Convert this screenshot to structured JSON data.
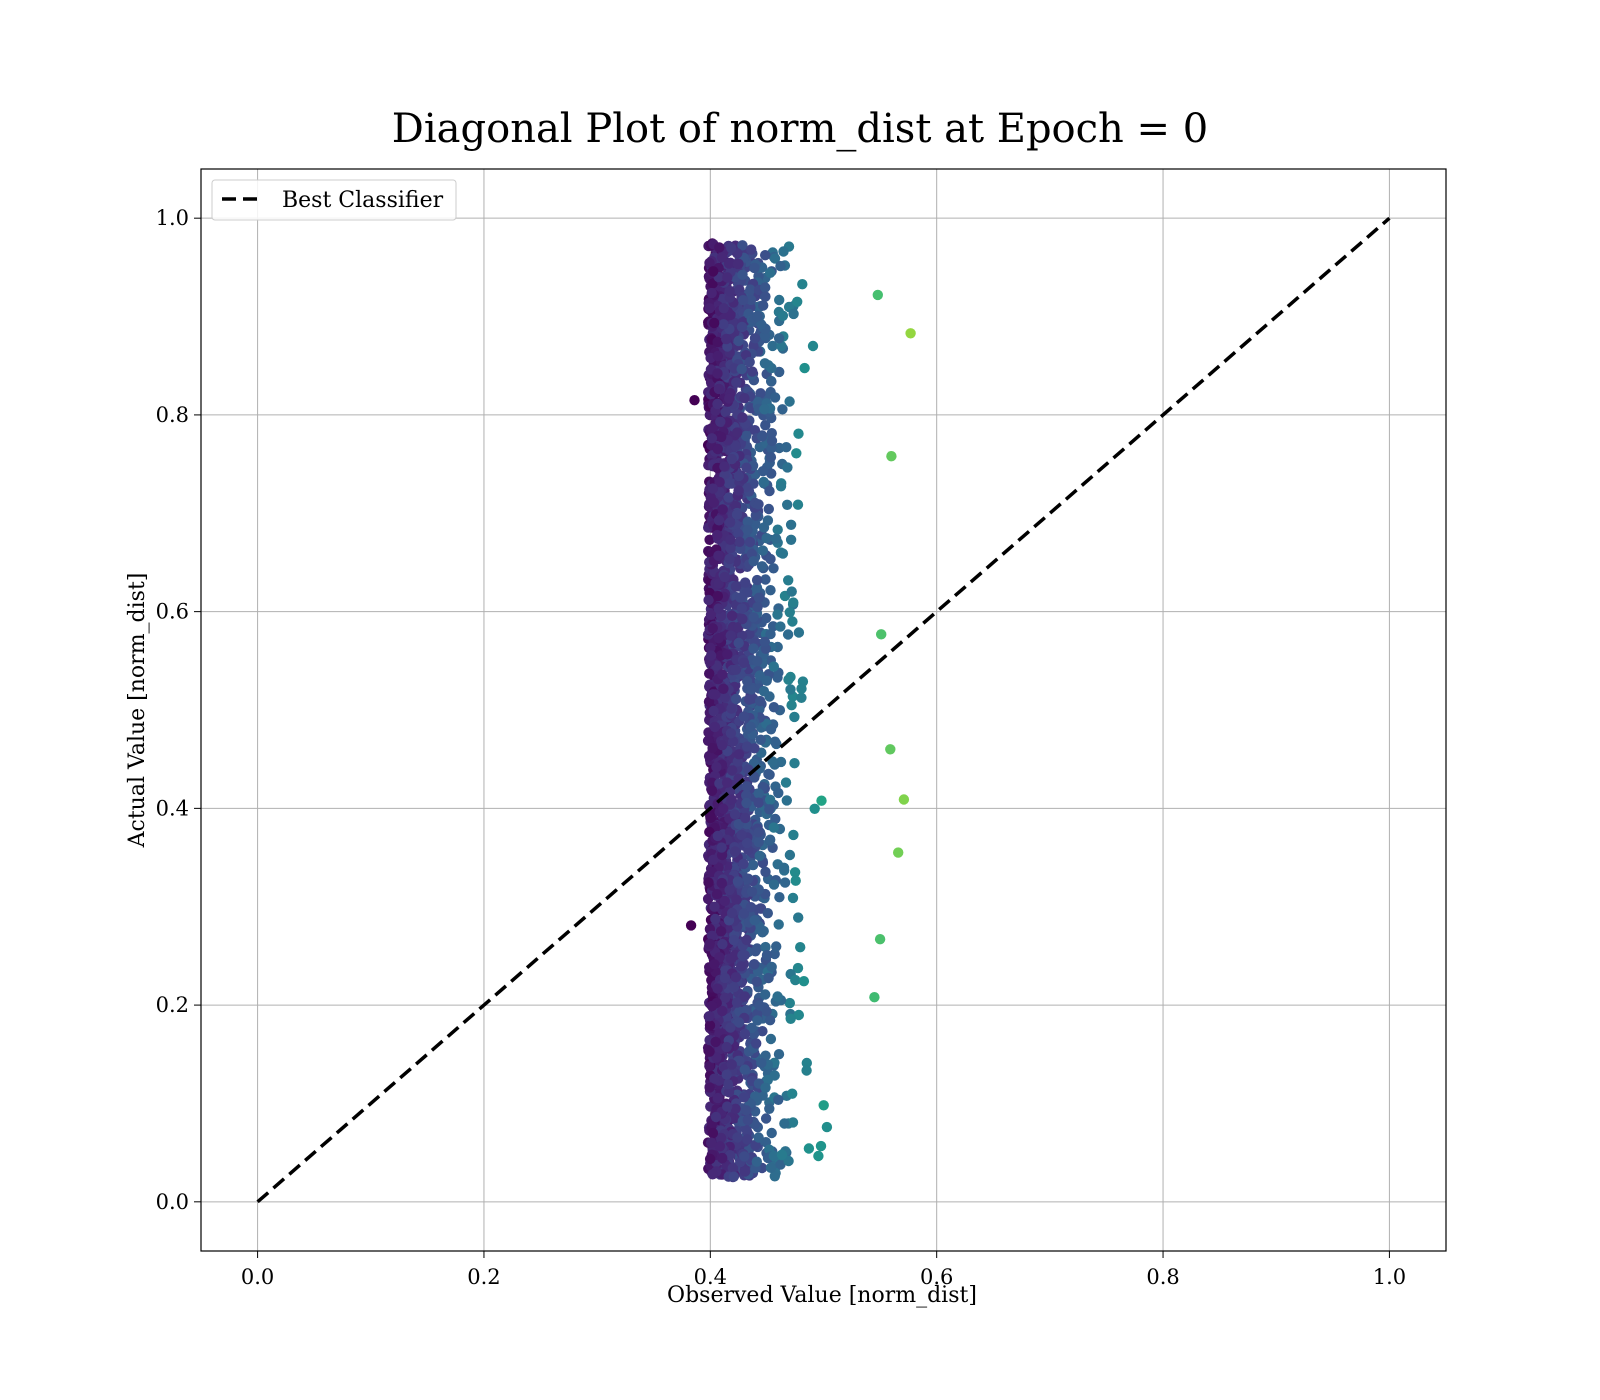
{
  "chart_data": {
    "type": "scatter",
    "title": "Diagonal Plot of norm_dist at Epoch = 0",
    "xlabel": "Observed Value [norm_dist]",
    "ylabel": "Actual Value [norm_dist]",
    "xlim": [
      -0.05,
      1.05
    ],
    "ylim": [
      -0.05,
      1.05
    ],
    "xticks": [
      "0.0",
      "0.2",
      "0.4",
      "0.6",
      "0.8",
      "1.0"
    ],
    "yticks": [
      "0.0",
      "0.2",
      "0.4",
      "0.6",
      "0.8",
      "1.0"
    ],
    "grid": true,
    "legend_position": "upper-left",
    "series": [
      {
        "name": "Best Classifier",
        "kind": "line",
        "style": "dashed",
        "color": "#000000",
        "x": [
          0.0,
          1.0
        ],
        "y": [
          0.0,
          1.0
        ]
      },
      {
        "kind": "scatter",
        "colormap": "viridis",
        "x_range": [
          0.385,
          0.58
        ],
        "y_range": [
          0.025,
          0.975
        ],
        "x_center": 0.44,
        "approx_count": 20000
      }
    ],
    "outlier_points": [
      {
        "x": 0.577,
        "y": 0.883
      },
      {
        "x": 0.548,
        "y": 0.922
      },
      {
        "x": 0.566,
        "y": 0.355
      },
      {
        "x": 0.571,
        "y": 0.409
      },
      {
        "x": 0.559,
        "y": 0.46
      },
      {
        "x": 0.55,
        "y": 0.267
      },
      {
        "x": 0.545,
        "y": 0.208
      },
      {
        "x": 0.503,
        "y": 0.076
      },
      {
        "x": 0.383,
        "y": 0.281
      },
      {
        "x": 0.386,
        "y": 0.815
      },
      {
        "x": 0.551,
        "y": 0.577
      },
      {
        "x": 0.56,
        "y": 0.758
      }
    ]
  },
  "legend": {
    "label": "Best Classifier"
  }
}
